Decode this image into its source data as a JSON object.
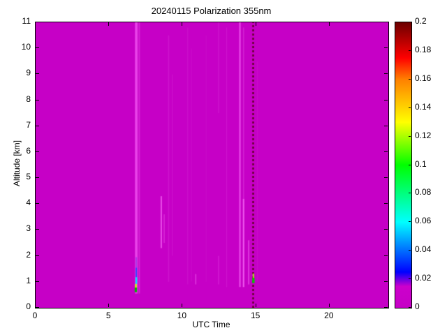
{
  "chart_data": {
    "type": "heatmap",
    "title": "20240115 Polarization 355nm",
    "xlabel": "UTC Time",
    "ylabel": "Altitude [km]",
    "xlim": [
      0,
      24
    ],
    "ylim": [
      0,
      11
    ],
    "xtick_values": [
      0,
      5,
      10,
      15,
      20
    ],
    "xtick_labels": [
      "0",
      "5",
      "10",
      "15",
      "20"
    ],
    "ytick_values": [
      0,
      1,
      2,
      3,
      4,
      5,
      6,
      7,
      8,
      9,
      10,
      11
    ],
    "ytick_labels": [
      "0",
      "1",
      "2",
      "3",
      "4",
      "5",
      "6",
      "7",
      "8",
      "9",
      "10",
      "11"
    ],
    "grid": false,
    "background_value": 0,
    "background_color": "#C600C6",
    "colorbar": {
      "min": 0,
      "max": 0.2,
      "position": "right",
      "tick_values": [
        0,
        0.02,
        0.04,
        0.06,
        0.08,
        0.1,
        0.12,
        0.14,
        0.16,
        0.18,
        0.2
      ],
      "tick_labels": [
        "0",
        "0.02",
        "0.04",
        "0.06",
        "0.08",
        "0.1",
        "0.12",
        "0.14",
        "0.16",
        "0.18",
        "0.2"
      ],
      "stops": [
        {
          "v": 0.0,
          "c": "#C600C6"
        },
        {
          "v": 0.015,
          "c": "#CC00CC"
        },
        {
          "v": 0.025,
          "c": "#0000FF"
        },
        {
          "v": 0.06,
          "c": "#00FFFF"
        },
        {
          "v": 0.1,
          "c": "#00FF00"
        },
        {
          "v": 0.13,
          "c": "#FFFF00"
        },
        {
          "v": 0.16,
          "c": "#FF8000"
        },
        {
          "v": 0.175,
          "c": "#FF0000"
        },
        {
          "v": 0.2,
          "c": "#6B0000"
        }
      ]
    },
    "features": [
      {
        "x": 6.85,
        "w": 0.18,
        "y0": 0.55,
        "y1": 11.0,
        "color": "#EE4CEE",
        "alpha": 0.85
      },
      {
        "x": 7.05,
        "w": 0.1,
        "y0": 0.55,
        "y1": 11.0,
        "color": "#E040E0",
        "alpha": 0.55
      },
      {
        "x": 6.82,
        "w": 0.16,
        "y0": 0.6,
        "y1": 0.78,
        "color": "#00B400",
        "alpha": 1
      },
      {
        "x": 6.82,
        "w": 0.12,
        "y0": 0.78,
        "y1": 0.92,
        "color": "#C8FF00",
        "alpha": 1
      },
      {
        "x": 6.85,
        "w": 0.12,
        "y0": 0.92,
        "y1": 1.18,
        "color": "#00E0FF",
        "alpha": 1
      },
      {
        "x": 6.85,
        "w": 0.1,
        "y0": 1.18,
        "y1": 1.55,
        "color": "#2040FF",
        "alpha": 0.9
      },
      {
        "x": 6.85,
        "w": 0.1,
        "y0": 1.55,
        "y1": 1.95,
        "color": "#8030E0",
        "alpha": 0.6
      },
      {
        "x": 8.55,
        "w": 0.1,
        "y0": 2.3,
        "y1": 4.3,
        "color": "#F05CF0",
        "alpha": 0.8
      },
      {
        "x": 8.75,
        "w": 0.08,
        "y0": 2.5,
        "y1": 3.6,
        "color": "#E84EE8",
        "alpha": 0.5
      },
      {
        "x": 9.05,
        "w": 0.08,
        "y0": 1.0,
        "y1": 10.5,
        "color": "#D628D6",
        "alpha": 0.5
      },
      {
        "x": 9.3,
        "w": 0.06,
        "y0": 2.0,
        "y1": 9.0,
        "color": "#D628D6",
        "alpha": 0.4
      },
      {
        "x": 10.35,
        "w": 0.06,
        "y0": 0.9,
        "y1": 10.8,
        "color": "#D52BD5",
        "alpha": 0.4
      },
      {
        "x": 10.6,
        "w": 0.05,
        "y0": 1.0,
        "y1": 10.0,
        "color": "#D52BD5",
        "alpha": 0.3
      },
      {
        "x": 10.9,
        "w": 0.06,
        "y0": 0.9,
        "y1": 1.3,
        "color": "#F060F0",
        "alpha": 0.7
      },
      {
        "x": 11.6,
        "w": 0.05,
        "y0": 1.0,
        "y1": 10.5,
        "color": "#D52BD5",
        "alpha": 0.3
      },
      {
        "x": 12.45,
        "w": 0.06,
        "y0": 7.5,
        "y1": 11.0,
        "color": "#D82CD8",
        "alpha": 0.5
      },
      {
        "x": 12.45,
        "w": 0.06,
        "y0": 0.9,
        "y1": 2.0,
        "color": "#E342E3",
        "alpha": 0.5
      },
      {
        "x": 13.0,
        "w": 0.06,
        "y0": 0.8,
        "y1": 10.8,
        "color": "#D82CD8",
        "alpha": 0.45
      },
      {
        "x": 13.9,
        "w": 0.12,
        "y0": 0.8,
        "y1": 11.0,
        "color": "#EC4EEC",
        "alpha": 0.8
      },
      {
        "x": 14.15,
        "w": 0.1,
        "y0": 0.8,
        "y1": 4.2,
        "color": "#F466F4",
        "alpha": 0.85
      },
      {
        "x": 14.15,
        "w": 0.08,
        "y0": 4.2,
        "y1": 10.8,
        "color": "#E040E0",
        "alpha": 0.5
      },
      {
        "x": 14.5,
        "w": 0.08,
        "y0": 0.9,
        "y1": 2.6,
        "color": "#EE5AEE",
        "alpha": 0.7
      },
      {
        "x": 14.8,
        "w": 0.1,
        "y0": 0.0,
        "y1": 11.0,
        "color": "#4A0000",
        "alpha": 0.9,
        "dashed": true
      },
      {
        "x": 14.82,
        "w": 0.16,
        "y0": 0.95,
        "y1": 1.15,
        "color": "#00C800",
        "alpha": 1
      },
      {
        "x": 14.82,
        "w": 0.1,
        "y0": 1.15,
        "y1": 1.32,
        "color": "#A0FF00",
        "alpha": 0.9
      },
      {
        "x": 15.1,
        "w": 0.05,
        "y0": 1.0,
        "y1": 9.5,
        "color": "#D52BD5",
        "alpha": 0.3
      }
    ]
  }
}
